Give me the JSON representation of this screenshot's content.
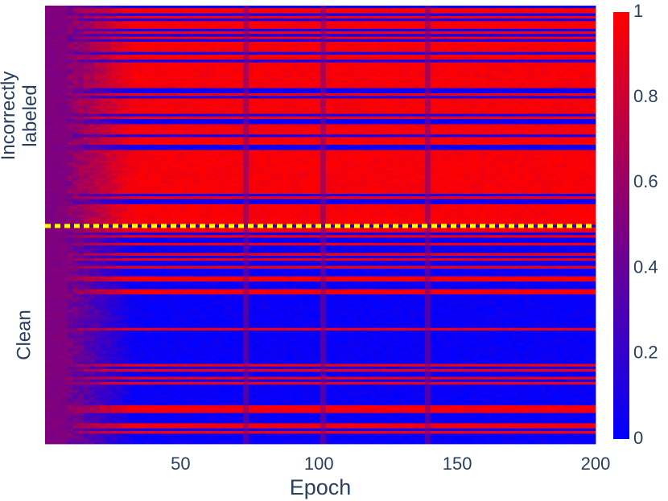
{
  "chart_data": {
    "type": "heatmap",
    "title": "",
    "xlabel": "Epoch",
    "x_range": [
      1,
      200
    ],
    "x_ticks": [
      50,
      100,
      150,
      200
    ],
    "y_groups": [
      {
        "name": "Incorrectly labeled",
        "lines": [
          "Incorrectly",
          "labeled"
        ]
      },
      {
        "name": "Clean",
        "lines": [
          "Clean"
        ]
      }
    ],
    "divider_color": "#ffff00",
    "colorscale": [
      [
        0,
        "#0000ff"
      ],
      [
        0.5,
        "#7f007f"
      ],
      [
        1,
        "#ff0000"
      ]
    ],
    "colorbar": {
      "range": [
        0,
        1
      ],
      "ticks": [
        0,
        0.2,
        0.4,
        0.6,
        0.8,
        1
      ],
      "tick_labels": [
        "0",
        "0.2",
        "0.4",
        "0.6",
        "0.8",
        "1"
      ]
    },
    "noisy_epochs": [
      73,
      102,
      140
    ]
  }
}
